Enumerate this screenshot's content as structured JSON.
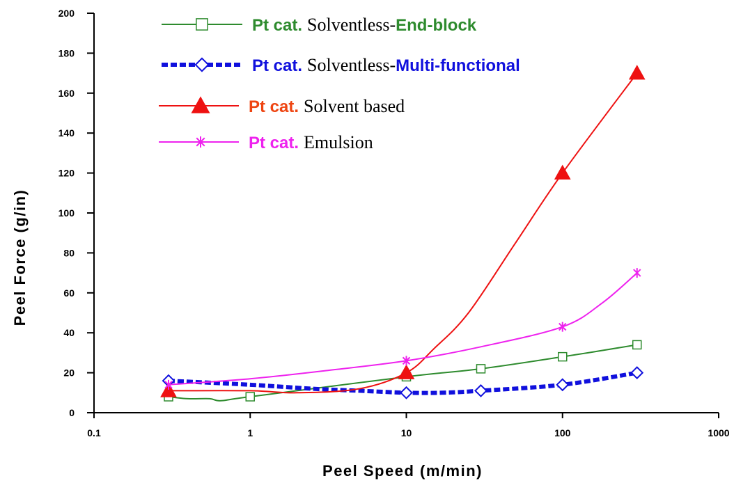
{
  "chart_data": {
    "type": "line",
    "xlabel": "Peel Speed (m/min)",
    "ylabel": "Peel Force (g/in)",
    "xscale": "log",
    "xlim": [
      0.1,
      1000
    ],
    "ylim": [
      0,
      200
    ],
    "x_ticks": [
      "0.1",
      "1",
      "10",
      "100",
      "1000"
    ],
    "y_ticks": [
      "0",
      "20",
      "40",
      "60",
      "80",
      "100",
      "120",
      "140",
      "160",
      "180",
      "200"
    ],
    "grid": false,
    "legend_position": "top-left",
    "series": [
      {
        "prefix": "Pt cat.",
        "label": "Solventless-",
        "suffix": "End-block",
        "color": "#2e8b2e",
        "prefix_color": "#2e8b2e",
        "suffix_color": "#2e8b2e",
        "marker": "open-square",
        "line_style": "solid",
        "x": [
          0.3,
          0.4,
          0.55,
          0.65,
          1,
          10,
          30,
          100,
          300
        ],
        "y": [
          8,
          7,
          7,
          6,
          8,
          18,
          22,
          28,
          34
        ],
        "marked": [
          0,
          4,
          5,
          6,
          7,
          8
        ],
        "legend_marker_mid": true
      },
      {
        "prefix": "Pt cat.",
        "label": "Solventless-",
        "suffix": "Multi-functional",
        "color": "#1010dd",
        "prefix_color": "#1010dd",
        "suffix_color": "#1010dd",
        "marker": "open-diamond",
        "line_style": "dotted-thick",
        "x": [
          0.3,
          1,
          2.5,
          5,
          10,
          17,
          30,
          100,
          300
        ],
        "y": [
          16,
          14,
          12,
          11,
          10,
          10,
          11,
          14,
          20
        ],
        "marked": [
          0,
          4,
          6,
          7,
          8
        ],
        "legend_marker_mid": true
      },
      {
        "prefix": "Pt cat.",
        "label": "Solvent based",
        "suffix": "",
        "color": "#ee1111",
        "prefix_color": "#ee4411",
        "suffix_color": "#ee1111",
        "marker": "filled-triangle",
        "line_style": "solid",
        "x": [
          0.3,
          1,
          2,
          5,
          10,
          15,
          25,
          50,
          100,
          300
        ],
        "y": [
          11,
          11,
          10,
          12,
          20,
          32,
          50,
          85,
          120,
          170
        ],
        "marked": [
          0,
          4,
          8,
          9
        ],
        "legend_marker_mid": false
      },
      {
        "prefix": "Pt cat.",
        "label": "Emulsion",
        "suffix": "",
        "color": "#ee22ee",
        "prefix_color": "#ee22ee",
        "suffix_color": "#ee22ee",
        "marker": "star",
        "line_style": "solid",
        "x": [
          0.3,
          1,
          3,
          10,
          30,
          100,
          180,
          300
        ],
        "y": [
          14,
          17,
          21,
          26,
          33,
          43,
          55,
          70
        ],
        "marked": [
          0,
          3,
          5,
          7
        ],
        "legend_marker_mid": false
      }
    ]
  }
}
